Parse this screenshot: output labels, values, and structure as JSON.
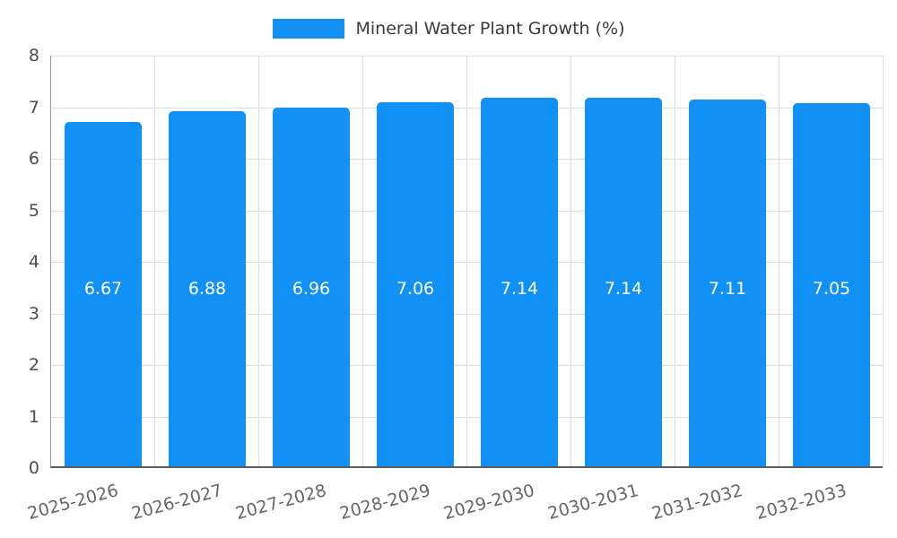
{
  "chart_data": {
    "type": "bar",
    "title": "Mineral Water Plant Growth (%)",
    "legend": {
      "label": "Mineral Water Plant Growth (%)",
      "position": "top"
    },
    "categories": [
      "2025-2026",
      "2026-2027",
      "2027-2028",
      "2028-2029",
      "2029-2030",
      "2030-2031",
      "2031-2032",
      "2032-2033"
    ],
    "values": [
      6.67,
      6.88,
      6.96,
      7.06,
      7.14,
      7.14,
      7.11,
      7.05
    ],
    "value_labels": [
      "6.67",
      "6.88",
      "6.96",
      "7.06",
      "7.14",
      "7.14",
      "7.11",
      "7.05"
    ],
    "xlabel": "",
    "ylabel": "",
    "ylim": [
      0,
      8
    ],
    "yticks": [
      0,
      1,
      2,
      3,
      4,
      5,
      6,
      7,
      8
    ],
    "grid": true,
    "bar_color": "#1190f5",
    "value_label_color": "#ffffff",
    "axis_text_color": "#666666",
    "grid_color": "#dcdcdc"
  }
}
